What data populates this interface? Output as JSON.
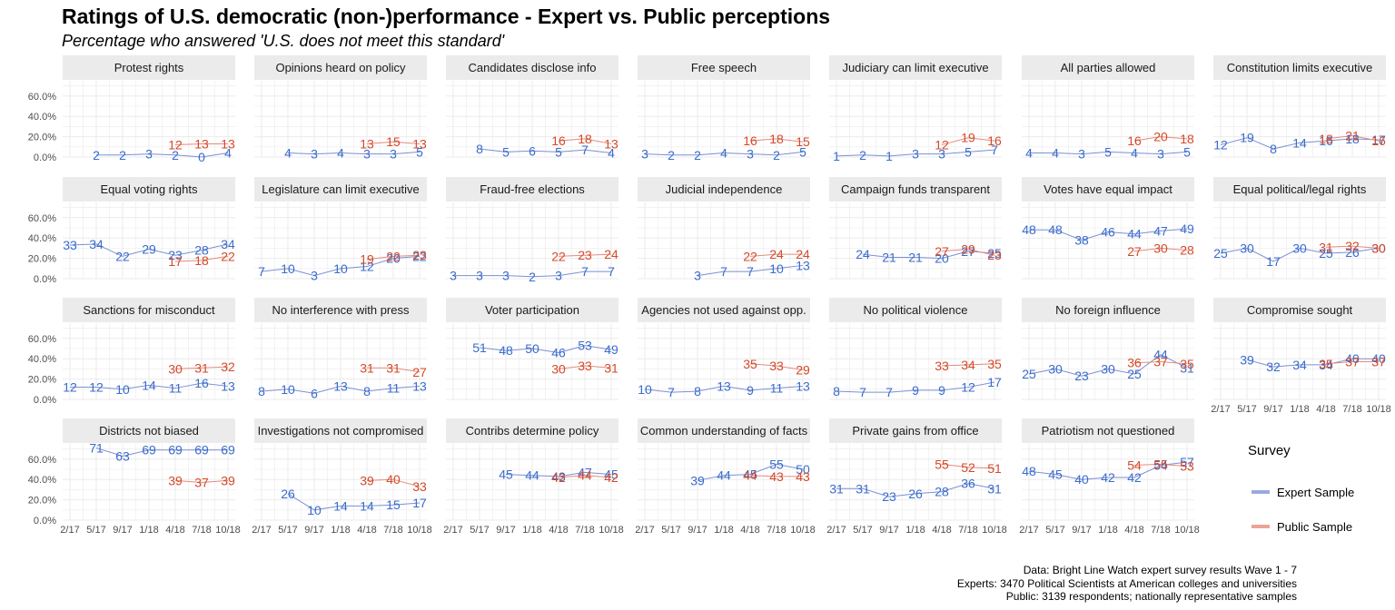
{
  "title": "Ratings of U.S. democratic (non-)performance - Expert vs. Public perceptions",
  "subtitle": "Percentage who answered 'U.S. does not meet this standard'",
  "legend": {
    "title": "Survey",
    "items": [
      {
        "label": "Expert Sample",
        "color": "#7b8fd4"
      },
      {
        "label": "Public Sample",
        "color": "#e68a7a"
      }
    ]
  },
  "caption": [
    "Data: Bright Line Watch expert survey results Wave 1 - 7",
    "Experts: 3470 Political Scientists at American colleges and universities",
    "Public: 3139 respondents; nationally representative samples"
  ],
  "colors": {
    "expert_line": "#7b8fd4",
    "expert_text": "#3a6ccc",
    "public_line": "#e68a7a",
    "public_text": "#d5492a",
    "strip": "#ebebeb",
    "grid": "#ebebeb"
  },
  "chart_data": {
    "type": "line",
    "facet_layout": "4 rows x 7 columns",
    "x": [
      "2/17",
      "5/17",
      "9/17",
      "1/18",
      "4/18",
      "7/18",
      "10/18"
    ],
    "y_ticks": [
      "0.0%",
      "20.0%",
      "40.0%",
      "60.0%"
    ],
    "ylim": [
      0,
      0.75
    ],
    "panels": [
      {
        "name": "Protest rights",
        "expert": [
          2,
          2,
          3,
          2,
          0,
          4
        ],
        "expert_x": [
          1,
          2,
          3,
          4,
          5,
          6
        ],
        "public": [
          12,
          13,
          13
        ]
      },
      {
        "name": "Opinions heard on policy",
        "expert": [
          4,
          3,
          4,
          3,
          3,
          5
        ],
        "expert_x": [
          1,
          2,
          3,
          4,
          5,
          6
        ],
        "public": [
          13,
          15,
          13
        ]
      },
      {
        "name": "Candidates disclose info",
        "expert": [
          8,
          5,
          6,
          5,
          7,
          4
        ],
        "expert_x": [
          1,
          2,
          3,
          4,
          5,
          6
        ],
        "public": [
          16,
          18,
          13
        ]
      },
      {
        "name": "Free speech",
        "expert": [
          3,
          2,
          2,
          4,
          3,
          2,
          5
        ],
        "expert_x": [
          0,
          1,
          2,
          3,
          4,
          5,
          6
        ],
        "public": [
          16,
          18,
          15
        ]
      },
      {
        "name": "Judiciary can limit executive",
        "expert": [
          1,
          2,
          1,
          3,
          3,
          5,
          7
        ],
        "expert_x": [
          0,
          1,
          2,
          3,
          4,
          5,
          6
        ],
        "public": [
          12,
          19,
          16
        ]
      },
      {
        "name": "All parties allowed",
        "expert": [
          4,
          4,
          3,
          5,
          4,
          3,
          5
        ],
        "expert_x": [
          0,
          1,
          2,
          3,
          4,
          5,
          6
        ],
        "public": [
          16,
          20,
          18
        ]
      },
      {
        "name": "Constitution limits executive",
        "expert": [
          12,
          19,
          8,
          14,
          16,
          18,
          17
        ],
        "expert_x": [
          0,
          1,
          2,
          3,
          4,
          5,
          6
        ],
        "public": [
          18,
          21,
          16
        ]
      },
      {
        "name": "Equal voting rights",
        "expert": [
          33,
          34,
          22,
          29,
          23,
          28,
          34
        ],
        "expert_x": [
          0,
          1,
          2,
          3,
          4,
          5,
          6
        ],
        "public": [
          17,
          18,
          22
        ]
      },
      {
        "name": "Legislature can limit executive",
        "expert": [
          7,
          10,
          3,
          10,
          12,
          20,
          22
        ],
        "expert_x": [
          0,
          1,
          2,
          3,
          4,
          5,
          6
        ],
        "public": [
          19,
          22,
          23
        ]
      },
      {
        "name": "Fraud-free elections",
        "expert": [
          3,
          3,
          3,
          2,
          3,
          7,
          7
        ],
        "expert_x": [
          0,
          1,
          2,
          3,
          4,
          5,
          6
        ],
        "public": [
          22,
          23,
          24
        ]
      },
      {
        "name": "Judicial independence",
        "expert": [
          3,
          7,
          7,
          10,
          13
        ],
        "expert_x": [
          2,
          3,
          4,
          5,
          6
        ],
        "public": [
          22,
          24,
          24
        ]
      },
      {
        "name": "Campaign funds transparent",
        "expert": [
          24,
          21,
          21,
          20,
          27,
          25
        ],
        "expert_x": [
          1,
          2,
          3,
          4,
          5,
          6
        ],
        "public": [
          27,
          29,
          23
        ]
      },
      {
        "name": "Votes have equal impact",
        "expert": [
          48,
          48,
          38,
          46,
          44,
          47,
          49
        ],
        "expert_x": [
          0,
          1,
          2,
          3,
          4,
          5,
          6
        ],
        "public": [
          27,
          30,
          28
        ]
      },
      {
        "name": "Equal political/legal rights",
        "expert": [
          25,
          30,
          17,
          30,
          25,
          26,
          30
        ],
        "expert_x": [
          0,
          1,
          2,
          3,
          4,
          5,
          6
        ],
        "public": [
          31,
          32,
          30
        ]
      },
      {
        "name": "Sanctions for misconduct",
        "expert": [
          12,
          12,
          10,
          14,
          11,
          16,
          13
        ],
        "expert_x": [
          0,
          1,
          2,
          3,
          4,
          5,
          6
        ],
        "public": [
          30,
          31,
          32
        ]
      },
      {
        "name": "No interference with press",
        "expert": [
          8,
          10,
          6,
          13,
          8,
          11,
          13
        ],
        "expert_x": [
          0,
          1,
          2,
          3,
          4,
          5,
          6
        ],
        "public": [
          31,
          31,
          27
        ]
      },
      {
        "name": "Voter participation",
        "expert": [
          51,
          48,
          50,
          46,
          53,
          49
        ],
        "expert_x": [
          1,
          2,
          3,
          4,
          5,
          6
        ],
        "public": [
          30,
          33,
          31
        ]
      },
      {
        "name": "Agencies not used against opp.",
        "expert": [
          10,
          7,
          8,
          13,
          9,
          11,
          13
        ],
        "expert_x": [
          0,
          1,
          2,
          3,
          4,
          5,
          6
        ],
        "public": [
          35,
          33,
          29
        ]
      },
      {
        "name": "No political violence",
        "expert": [
          8,
          7,
          7,
          9,
          9,
          12,
          17
        ],
        "expert_x": [
          0,
          1,
          2,
          3,
          4,
          5,
          6
        ],
        "public": [
          33,
          34,
          35
        ]
      },
      {
        "name": "No foreign influence",
        "expert": [
          25,
          30,
          23,
          30,
          25,
          44,
          31
        ],
        "expert_x": [
          0,
          1,
          2,
          3,
          4,
          5,
          6
        ],
        "public": [
          36,
          37,
          35
        ]
      },
      {
        "name": "Compromise sought",
        "expert": [
          39,
          32,
          34,
          34,
          40,
          40
        ],
        "expert_x": [
          1,
          2,
          3,
          4,
          5,
          6
        ],
        "public": [
          35,
          37,
          37
        ]
      },
      {
        "name": "Districts not biased",
        "expert": [
          71,
          63,
          69,
          69,
          69,
          69
        ],
        "expert_x": [
          1,
          2,
          3,
          4,
          5,
          6
        ],
        "public": [
          39,
          37,
          39
        ]
      },
      {
        "name": "Investigations not compromised",
        "expert": [
          26,
          10,
          14,
          14,
          15,
          17
        ],
        "expert_x": [
          1,
          2,
          3,
          4,
          5,
          6
        ],
        "public": [
          39,
          40,
          33
        ]
      },
      {
        "name": "Contribs determine policy",
        "expert": [
          45,
          44,
          43,
          47,
          45
        ],
        "expert_x": [
          2,
          3,
          4,
          5,
          6
        ],
        "public": [
          42,
          44,
          42
        ]
      },
      {
        "name": "Common understanding of facts",
        "expert": [
          39,
          44,
          45,
          55,
          50
        ],
        "expert_x": [
          2,
          3,
          4,
          5,
          6
        ],
        "public": [
          44,
          43,
          43
        ]
      },
      {
        "name": "Private gains from office",
        "expert": [
          31,
          31,
          23,
          26,
          28,
          36,
          31
        ],
        "expert_x": [
          0,
          1,
          2,
          3,
          4,
          5,
          6
        ],
        "public": [
          55,
          52,
          51
        ]
      },
      {
        "name": "Patriotism not questioned",
        "expert": [
          48,
          45,
          40,
          42,
          42,
          54,
          57
        ],
        "expert_x": [
          0,
          1,
          2,
          3,
          4,
          5,
          6
        ],
        "public": [
          54,
          55,
          53
        ]
      }
    ]
  }
}
